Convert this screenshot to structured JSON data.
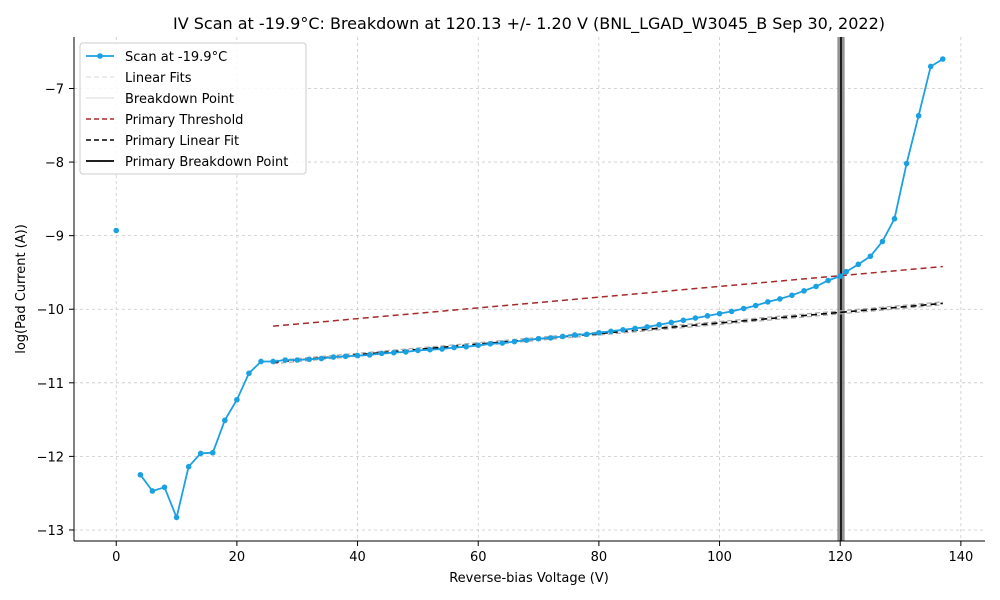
{
  "chart_data": {
    "type": "line",
    "title": "IV Scan at -19.9°C: Breakdown at 120.13 +/- 1.20 V (BNL_LGAD_W3045_B Sep 30, 2022)",
    "xlabel": "Reverse-bias Voltage (V)",
    "ylabel": "log(Pad Current (A))",
    "xlim": [
      -7,
      144
    ],
    "ylim": [
      -13.15,
      -6.3
    ],
    "x_ticks": [
      0,
      20,
      40,
      60,
      80,
      100,
      120,
      140
    ],
    "y_ticks": [
      -13,
      -12,
      -11,
      -10,
      -9,
      -8,
      -7
    ],
    "grid": true,
    "legend_position": "top-left",
    "legend": [
      "Scan at -19.9°C",
      "Linear Fits",
      "Breakdown Point",
      "Primary Threshold",
      "Primary Linear Fit",
      "Primary Breakdown Point"
    ],
    "scan": {
      "name": "Scan at -19.9°C",
      "color": "#1ba1e2",
      "x": [
        0,
        4,
        6,
        8,
        10,
        12,
        14,
        16,
        18,
        20,
        22,
        24,
        26,
        28,
        30,
        32,
        34,
        36,
        38,
        40,
        42,
        44,
        46,
        48,
        50,
        52,
        54,
        56,
        58,
        60,
        62,
        64,
        66,
        68,
        70,
        72,
        74,
        76,
        78,
        80,
        82,
        84,
        86,
        88,
        90,
        92,
        94,
        96,
        98,
        100,
        102,
        104,
        106,
        108,
        110,
        112,
        114,
        116,
        118,
        120,
        121,
        123,
        125,
        127,
        129,
        131,
        133,
        135,
        137
      ],
      "y": [
        -8.93,
        -12.25,
        -12.47,
        -12.42,
        -12.83,
        -12.14,
        -11.96,
        -11.95,
        -11.51,
        -11.23,
        -10.87,
        -10.71,
        -10.71,
        -10.69,
        -10.69,
        -10.68,
        -10.67,
        -10.65,
        -10.64,
        -10.63,
        -10.62,
        -10.6,
        -10.59,
        -10.58,
        -10.56,
        -10.55,
        -10.54,
        -10.52,
        -10.51,
        -10.49,
        -10.47,
        -10.46,
        -10.44,
        -10.42,
        -10.4,
        -10.39,
        -10.37,
        -10.35,
        -10.34,
        -10.32,
        -10.3,
        -10.28,
        -10.26,
        -10.24,
        -10.21,
        -10.18,
        -10.15,
        -10.12,
        -10.09,
        -10.06,
        -10.03,
        -9.99,
        -9.95,
        -9.9,
        -9.86,
        -9.81,
        -9.75,
        -9.69,
        -9.61,
        -9.55,
        -9.49,
        -9.39,
        -9.28,
        -9.08,
        -8.77,
        -8.02,
        -7.37,
        -6.7,
        -6.6
      ]
    },
    "primary_threshold": {
      "name": "Primary Threshold",
      "color": "#a52a2a",
      "x": [
        26,
        137
      ],
      "y": [
        -10.23,
        -9.42
      ]
    },
    "primary_linear_fit": {
      "name": "Primary Linear Fit",
      "color": "#000000",
      "x": [
        26,
        137
      ],
      "y": [
        -10.72,
        -9.92
      ]
    },
    "primary_breakdown_voltage": 120.13,
    "breakdown_uncertainty": 1.2
  }
}
